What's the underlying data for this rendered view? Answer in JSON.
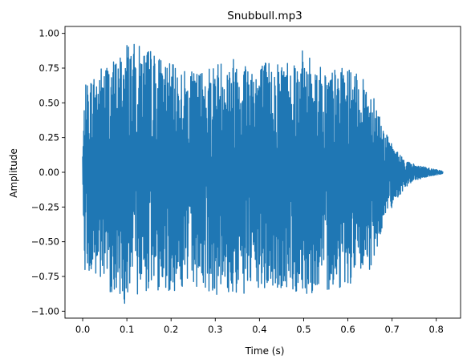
{
  "chart_data": {
    "type": "line",
    "title": "Snubbull.mp3",
    "xlabel": "Time (s)",
    "ylabel": "Amplitude",
    "xlim": [
      -0.04,
      0.855
    ],
    "ylim": [
      -1.05,
      1.05
    ],
    "xticks": [
      0.0,
      0.1,
      0.2,
      0.3,
      0.4,
      0.5,
      0.6,
      0.7,
      0.8
    ],
    "xtick_labels": [
      "0.0",
      "0.1",
      "0.2",
      "0.3",
      "0.4",
      "0.5",
      "0.6",
      "0.7",
      "0.8"
    ],
    "yticks": [
      -1.0,
      -0.75,
      -0.5,
      -0.25,
      0.0,
      0.25,
      0.5,
      0.75,
      1.0
    ],
    "ytick_labels": [
      "−1.00",
      "−0.75",
      "−0.50",
      "−0.25",
      "0.00",
      "0.25",
      "0.50",
      "0.75",
      "1.00"
    ],
    "grid": false,
    "legend": "none",
    "series": [
      {
        "color": "#1f77b4",
        "x_start": 0.0,
        "x_end": 0.815,
        "envelope": {
          "t": [
            0.0,
            0.005,
            0.02,
            0.05,
            0.08,
            0.1,
            0.11,
            0.15,
            0.2,
            0.25,
            0.3,
            0.35,
            0.4,
            0.45,
            0.5,
            0.55,
            0.6,
            0.63,
            0.66,
            0.68,
            0.7,
            0.72,
            0.74,
            0.77,
            0.8,
            0.815
          ],
          "max": [
            0.15,
            0.62,
            0.7,
            0.8,
            0.83,
            0.97,
            0.93,
            0.9,
            0.78,
            0.72,
            0.8,
            0.85,
            0.8,
            0.82,
            0.88,
            0.74,
            0.76,
            0.68,
            0.6,
            0.32,
            0.2,
            0.12,
            0.07,
            0.04,
            0.02,
            0.01
          ],
          "min": [
            -0.1,
            -0.7,
            -0.78,
            -0.84,
            -0.9,
            -0.97,
            -0.9,
            -0.85,
            -0.86,
            -0.82,
            -0.88,
            -0.9,
            -0.87,
            -0.86,
            -0.88,
            -0.85,
            -0.82,
            -0.75,
            -0.7,
            -0.35,
            -0.25,
            -0.15,
            -0.08,
            -0.04,
            -0.02,
            -0.01
          ]
        }
      }
    ]
  }
}
